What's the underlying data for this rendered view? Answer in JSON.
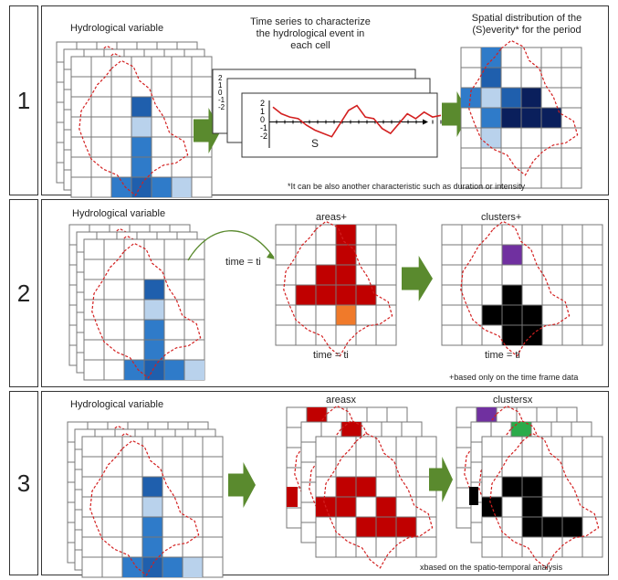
{
  "rows": [
    {
      "number": "1",
      "labels": {
        "variable": "Hydrological variable",
        "timeseries": [
          "Time series to characterize",
          "the hydrological event in",
          "each cell"
        ],
        "spatial": [
          "Spatial distribution of the",
          "(S)everity* for the period"
        ],
        "s_marker": "S"
      },
      "footnote": "*It can be also another characteristic such as duration or intensity",
      "y_ticks": [
        "2",
        "1",
        "0",
        "-1",
        "-2"
      ]
    },
    {
      "number": "2",
      "labels": {
        "variable": "Hydrological variable",
        "areas": "areas+",
        "clusters": "clusters+",
        "time_left": "time = ti",
        "time_mid": "time = ti",
        "time_right": "time = ti"
      },
      "footnote": "+based only on the time frame data"
    },
    {
      "number": "3",
      "labels": {
        "variable": "Hydrological variable",
        "areas": "areasx",
        "clusters": "clustersx"
      },
      "footnote": "xbased on the spatio-temporal analysis"
    }
  ],
  "colors": {
    "dark_blue": "#1f5fad",
    "mid_blue": "#2f7bc9",
    "light_blue": "#b9d2ec",
    "navy": "#0a1f5c",
    "red_cell": "#c00000",
    "orange_cell": "#f07a2a",
    "purple_cell": "#7030a0",
    "green_cell": "#2bab4a",
    "black_cell": "#000000",
    "arrow_green": "#5a8a2e",
    "boundary_red": "#d32020"
  }
}
